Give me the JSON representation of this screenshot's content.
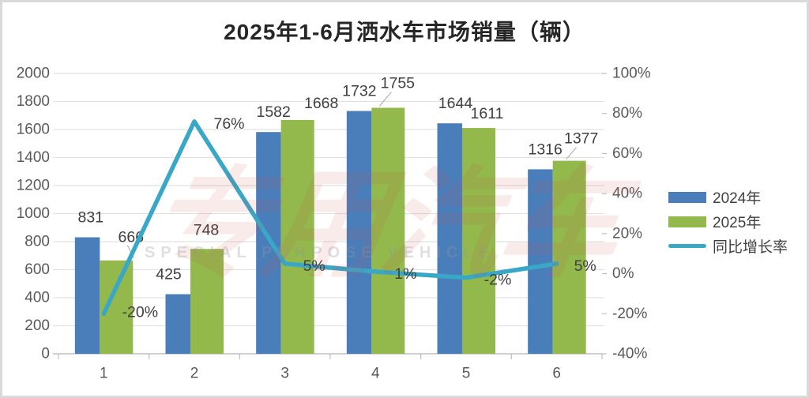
{
  "title": "2025年1-6月洒水车市场销量（辆）",
  "legend": {
    "items": [
      {
        "label": "2024年",
        "type": "rect",
        "color": "#4a7ebb"
      },
      {
        "label": "2025年",
        "type": "rect",
        "color": "#93b94c"
      },
      {
        "label": "同比增长率",
        "type": "line",
        "color": "#39a7c6"
      }
    ]
  },
  "watermark": {
    "text": "专用汽车",
    "subtext": "SPECIAL PURPOSE VEHICLE"
  },
  "colors": {
    "bar_2024": "#4a7ebb",
    "bar_2025": "#93b94c",
    "growth_line": "#39a7c6",
    "grid": "#e2e2e2",
    "axis": "#bfbfbf",
    "tick_text": "#595959",
    "data_label": "#404040",
    "leader": "#a6a6a6"
  },
  "chart_data": {
    "type": "bar",
    "subtype": "grouped bars with overlay line (combo chart)",
    "title": "2025年1-6月洒水车市场销量（辆）",
    "categories": [
      "1",
      "2",
      "3",
      "4",
      "5",
      "6"
    ],
    "series": [
      {
        "name": "2024年",
        "type": "bar",
        "axis": "left",
        "values": [
          831,
          425,
          1582,
          1732,
          1644,
          1316
        ]
      },
      {
        "name": "2025年",
        "type": "bar",
        "axis": "left",
        "values": [
          666,
          748,
          1668,
          1755,
          1611,
          1377
        ]
      },
      {
        "name": "同比增长率",
        "type": "line",
        "axis": "right",
        "values_pct": [
          -20,
          76,
          5,
          1,
          -2,
          5
        ],
        "labels": [
          "-20%",
          "76%",
          "5%",
          "1%",
          "-2%",
          "5%"
        ]
      }
    ],
    "left_axis": {
      "min": 0,
      "max": 2000,
      "step": 200,
      "ticks": [
        "0",
        "200",
        "400",
        "600",
        "800",
        "1000",
        "1200",
        "1400",
        "1600",
        "1800",
        "2000"
      ]
    },
    "right_axis": {
      "min": -40,
      "max": 100,
      "step": 20,
      "ticks": [
        "-40%",
        "-20%",
        "0%",
        "20%",
        "40%",
        "60%",
        "80%",
        "100%"
      ]
    },
    "grid": true,
    "legend_position": "right"
  }
}
